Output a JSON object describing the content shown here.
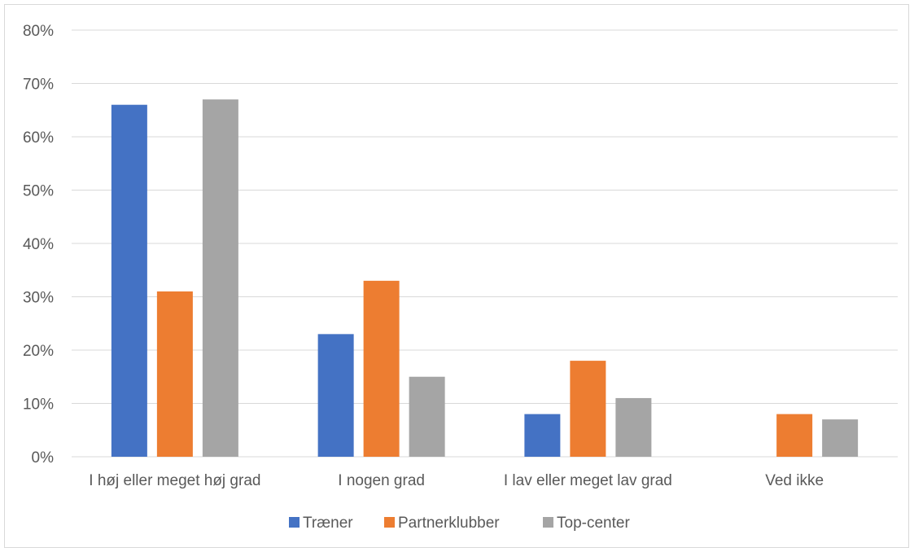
{
  "chart_data": {
    "type": "bar",
    "categories": [
      "I høj eller meget høj grad",
      "I nogen grad",
      "I lav eller meget lav grad",
      "Ved ikke"
    ],
    "series": [
      {
        "name": "Træner",
        "color": "#4472C4",
        "values": [
          66,
          23,
          8,
          0
        ]
      },
      {
        "name": "Partnerklubber",
        "color": "#ED7D31",
        "values": [
          31,
          33,
          18,
          8
        ]
      },
      {
        "name": "Top-center",
        "color": "#A5A5A5",
        "values": [
          67,
          15,
          11,
          7
        ]
      }
    ],
    "ylim": [
      0,
      80
    ],
    "yticks": [
      0,
      10,
      20,
      30,
      40,
      50,
      60,
      70,
      80
    ],
    "ytick_labels": [
      "0%",
      "10%",
      "20%",
      "30%",
      "40%",
      "50%",
      "60%",
      "70%",
      "80%"
    ],
    "grid": true,
    "legend_position": "bottom"
  }
}
